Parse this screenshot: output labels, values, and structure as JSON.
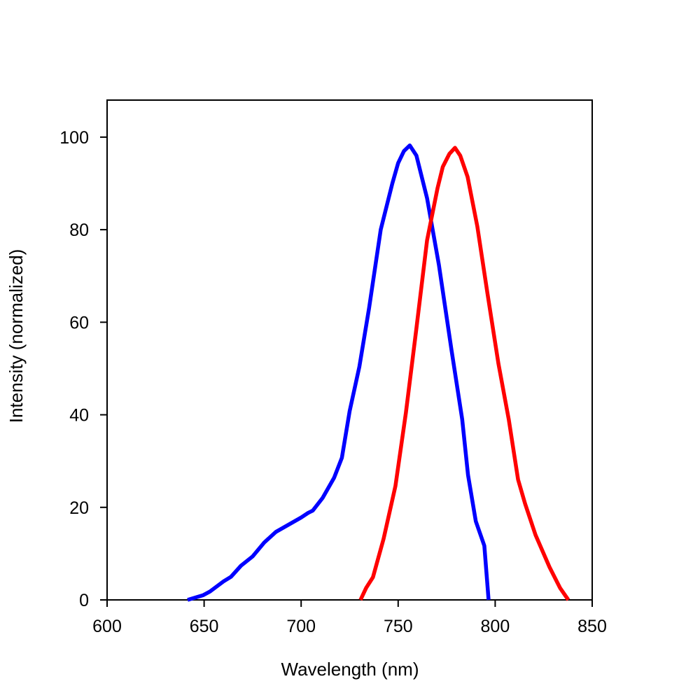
{
  "chart_data": {
    "type": "line",
    "title": "",
    "xlabel": "Wavelength (nm)",
    "ylabel": "Intensity (normalized)",
    "xlim": [
      600,
      850
    ],
    "ylim": [
      0,
      108
    ],
    "xticks": [
      "600",
      "650",
      "700",
      "750",
      "800",
      "850"
    ],
    "yticks": [
      "0",
      "20",
      "40",
      "60",
      "80",
      "100"
    ],
    "grid": false,
    "legend": "none",
    "series": [
      {
        "color": "#0000ff",
        "x": [
          641.5,
          649.4,
          653,
          660,
          663.9,
          669,
          675,
          681,
          687,
          700,
          703.6,
          706,
          711,
          717,
          721,
          725,
          730,
          735,
          741,
          747,
          750,
          753,
          756,
          759.4,
          764.9,
          771,
          777.5,
          783,
          786,
          790,
          794.4,
          796.6
        ],
        "y": [
          0,
          1,
          1.8,
          4,
          5,
          7.4,
          9.4,
          12.4,
          14.7,
          17.8,
          18.8,
          19.3,
          22,
          26.4,
          30.7,
          40.8,
          50.4,
          63,
          80,
          90,
          94.4,
          97,
          98.2,
          96,
          86.8,
          72.4,
          54,
          39,
          27,
          17,
          11.7,
          0
        ]
      },
      {
        "color": "#ff0000",
        "x": [
          730.6,
          733.5,
          737,
          742.5,
          748.6,
          754,
          759.4,
          764.9,
          770.3,
          773,
          776.4,
          779.3,
          782,
          785.8,
          790.8,
          796,
          801.7,
          807,
          811.8,
          815.4,
          820.8,
          828,
          833.4,
          837.7
        ],
        "y": [
          0,
          2.6,
          4.9,
          13.2,
          24.6,
          40.5,
          58.7,
          77.7,
          89,
          93.6,
          96.4,
          97.7,
          96,
          91.4,
          80.7,
          66.3,
          51,
          39,
          26,
          20.8,
          14,
          7.1,
          2.6,
          0
        ]
      }
    ]
  }
}
